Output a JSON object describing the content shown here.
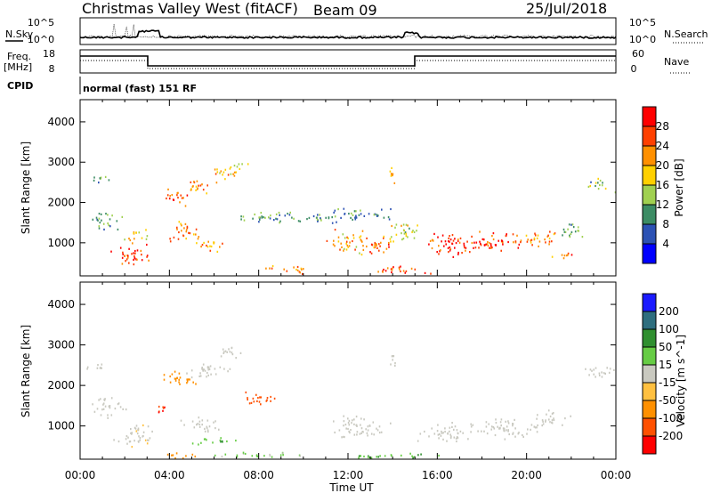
{
  "header": {
    "title": "Christmas Valley West (fitACF)",
    "beam": "Beam 09",
    "date": "25/Jul/2018"
  },
  "noise_panel": {
    "left_label": "N.Sky",
    "right_label": "N.Search",
    "ticks_left": [
      "10^5",
      "10^0"
    ],
    "ticks_right": [
      "10^5",
      "10^0"
    ]
  },
  "freq_panel": {
    "left_label_1": "Freq.",
    "left_label_2": "[MHz]",
    "right_label": "Nave",
    "ticks_left": [
      "18",
      "8"
    ],
    "ticks_right": [
      "60",
      "0"
    ]
  },
  "cpid": {
    "label": "CPID",
    "value": "normal (fast) 151 RF"
  },
  "power_colorbar": {
    "label": "Power [dB]",
    "ticks": [
      "4",
      "8",
      "12",
      "16",
      "20",
      "24",
      "28"
    ],
    "colors": [
      "#0000ff",
      "#2c52b4",
      "#3c8c64",
      "#a0d050",
      "#ffd000",
      "#ff9000",
      "#ff4000",
      "#ff0000"
    ]
  },
  "velocity_colorbar": {
    "label": "Velocity [m s^-1]",
    "ticks": [
      "200",
      "100",
      "50",
      "15",
      "-15",
      "-50",
      "-100",
      "-200"
    ],
    "colors": [
      "#1a1aff",
      "#2e6e7e",
      "#2f8f2f",
      "#66cc44",
      "#c9c9c0",
      "#ffc040",
      "#ff9000",
      "#ff5000",
      "#ff0000"
    ]
  },
  "axes": {
    "ylabel": "Slant Range [km]",
    "yticks": [
      "1000",
      "2000",
      "3000",
      "4000"
    ],
    "xticks": [
      "00:00",
      "04:00",
      "08:00",
      "12:00",
      "16:00",
      "20:00",
      "00:00"
    ],
    "xlabel": "Time UT"
  },
  "chart_data": [
    {
      "type": "heatmap",
      "name": "Power",
      "x_range_hours": [
        0,
        24
      ],
      "y_range_km": [
        180,
        4550
      ],
      "blobs": [
        {
          "t": 0.8,
          "r": 2620,
          "dt": 0.7,
          "dr": 120,
          "level": 11
        },
        {
          "t": 1.1,
          "r": 1600,
          "dt": 1.0,
          "dr": 250,
          "level": 12
        },
        {
          "t": 2.2,
          "r": 750,
          "dt": 1.1,
          "dr": 350,
          "level": 27
        },
        {
          "t": 2.5,
          "r": 1200,
          "dt": 0.9,
          "dr": 170,
          "level": 19
        },
        {
          "t": 4.3,
          "r": 2150,
          "dt": 0.8,
          "dr": 250,
          "level": 25
        },
        {
          "t": 5.3,
          "r": 2420,
          "dt": 1.0,
          "dr": 220,
          "level": 23
        },
        {
          "t": 6.4,
          "r": 2750,
          "dt": 0.9,
          "dr": 200,
          "level": 20
        },
        {
          "t": 7.0,
          "r": 2900,
          "dt": 0.6,
          "dr": 150,
          "level": 16
        },
        {
          "t": 4.7,
          "r": 1300,
          "dt": 1.0,
          "dr": 300,
          "level": 23
        },
        {
          "t": 5.8,
          "r": 950,
          "dt": 0.9,
          "dr": 200,
          "level": 21
        },
        {
          "t": 7.8,
          "r": 1650,
          "dt": 1.0,
          "dr": 170,
          "level": 12
        },
        {
          "t": 8.6,
          "r": 1650,
          "dt": 0.8,
          "dr": 150,
          "level": 10
        },
        {
          "t": 9.5,
          "r": 350,
          "dt": 1.5,
          "dr": 120,
          "level": 22
        },
        {
          "t": 12.0,
          "r": 1050,
          "dt": 1.2,
          "dr": 350,
          "level": 20
        },
        {
          "t": 13.3,
          "r": 950,
          "dt": 1.0,
          "dr": 300,
          "level": 24
        },
        {
          "t": 14.0,
          "r": 2650,
          "dt": 0.3,
          "dr": 300,
          "level": 18
        },
        {
          "t": 14.4,
          "r": 1250,
          "dt": 1.0,
          "dr": 300,
          "level": 16
        },
        {
          "t": 14.0,
          "r": 350,
          "dt": 2.0,
          "dr": 120,
          "level": 26
        },
        {
          "t": 16.5,
          "r": 950,
          "dt": 1.6,
          "dr": 350,
          "level": 28
        },
        {
          "t": 18.5,
          "r": 1050,
          "dt": 1.8,
          "dr": 280,
          "level": 26
        },
        {
          "t": 20.3,
          "r": 1100,
          "dt": 1.5,
          "dr": 250,
          "level": 23
        },
        {
          "t": 21.6,
          "r": 700,
          "dt": 0.6,
          "dr": 150,
          "level": 24
        },
        {
          "t": 22.0,
          "r": 1300,
          "dt": 0.9,
          "dr": 220,
          "level": 12
        },
        {
          "t": 23.3,
          "r": 2450,
          "dt": 0.8,
          "dr": 200,
          "level": 12
        },
        {
          "t": 11.5,
          "r": 1700,
          "dt": 3.5,
          "dr": 200,
          "level": 9
        }
      ]
    },
    {
      "type": "heatmap",
      "name": "Velocity",
      "x_range_hours": [
        0,
        24
      ],
      "y_range_km": [
        180,
        4550
      ],
      "blobs": [
        {
          "t": 0.8,
          "r": 2500,
          "dt": 0.7,
          "dr": 120,
          "vel": 0
        },
        {
          "t": 1.2,
          "r": 1500,
          "dt": 1.0,
          "dr": 300,
          "vel": 0
        },
        {
          "t": 2.5,
          "r": 800,
          "dt": 1.2,
          "dr": 350,
          "vel": -10
        },
        {
          "t": 3.6,
          "r": 1400,
          "dt": 0.4,
          "dr": 200,
          "vel": -150
        },
        {
          "t": 4.3,
          "r": 2200,
          "dt": 0.8,
          "dr": 250,
          "vel": -40
        },
        {
          "t": 5.6,
          "r": 2400,
          "dt": 1.3,
          "dr": 250,
          "vel": 0
        },
        {
          "t": 6.6,
          "r": 2850,
          "dt": 0.8,
          "dr": 200,
          "vel": 0
        },
        {
          "t": 5.0,
          "r": 2150,
          "dt": 0.4,
          "dr": 150,
          "vel": -60
        },
        {
          "t": 8.0,
          "r": 1700,
          "dt": 1.3,
          "dr": 170,
          "vel": -110
        },
        {
          "t": 5.5,
          "r": 1050,
          "dt": 1.2,
          "dr": 220,
          "vel": 0
        },
        {
          "t": 6.0,
          "r": 650,
          "dt": 1.5,
          "dr": 100,
          "vel": 25
        },
        {
          "t": 8.0,
          "r": 300,
          "dt": 3.0,
          "dr": 80,
          "vel": 20
        },
        {
          "t": 12.5,
          "r": 1000,
          "dt": 1.7,
          "dr": 350,
          "vel": 0
        },
        {
          "t": 14.0,
          "r": 2600,
          "dt": 0.3,
          "dr": 250,
          "vel": -5
        },
        {
          "t": 16.5,
          "r": 850,
          "dt": 1.8,
          "dr": 280,
          "vel": 0
        },
        {
          "t": 19.0,
          "r": 950,
          "dt": 2.0,
          "dr": 300,
          "vel": 0
        },
        {
          "t": 21.0,
          "r": 1200,
          "dt": 1.2,
          "dr": 250,
          "vel": 0
        },
        {
          "t": 23.2,
          "r": 2400,
          "dt": 0.9,
          "dr": 220,
          "vel": 0
        },
        {
          "t": 13.5,
          "r": 300,
          "dt": 3.0,
          "dr": 80,
          "vel": 30
        },
        {
          "t": 4.5,
          "r": 300,
          "dt": 1.2,
          "dr": 80,
          "vel": -60
        }
      ]
    }
  ]
}
